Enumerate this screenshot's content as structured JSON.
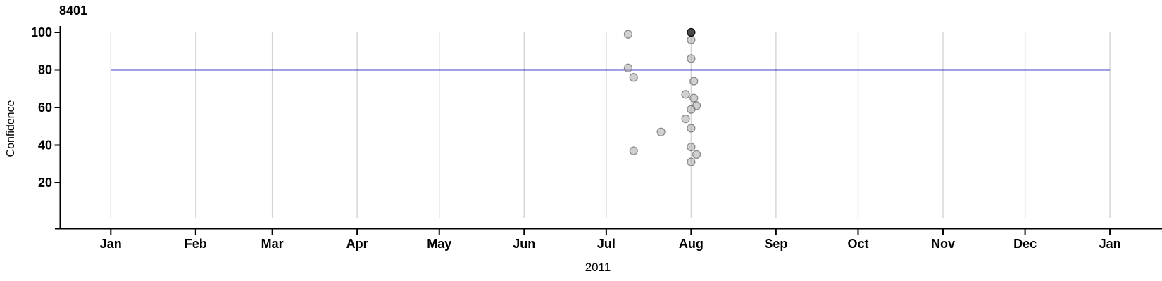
{
  "chart_data": {
    "type": "scatter",
    "title": "8401",
    "xlabel": "2011",
    "ylabel": "Confidence",
    "legend": "none",
    "grid": "vertical-month-lines",
    "x_axis": {
      "range": [
        "2011-01-01",
        "2012-01-01"
      ],
      "ticks": [
        {
          "label": "Jan",
          "date": "2011-01-01"
        },
        {
          "label": "Feb",
          "date": "2011-02-01"
        },
        {
          "label": "Mar",
          "date": "2011-03-01"
        },
        {
          "label": "Apr",
          "date": "2011-04-01"
        },
        {
          "label": "May",
          "date": "2011-05-01"
        },
        {
          "label": "Jun",
          "date": "2011-06-01"
        },
        {
          "label": "Jul",
          "date": "2011-07-01"
        },
        {
          "label": "Aug",
          "date": "2011-08-01"
        },
        {
          "label": "Sep",
          "date": "2011-09-01"
        },
        {
          "label": "Oct",
          "date": "2011-10-01"
        },
        {
          "label": "Nov",
          "date": "2011-11-01"
        },
        {
          "label": "Dec",
          "date": "2011-12-01"
        },
        {
          "label": "Jan",
          "date": "2012-01-01"
        }
      ]
    },
    "y_axis": {
      "label": "Confidence",
      "ticks": [
        20,
        40,
        60,
        80,
        100
      ],
      "range": [
        0,
        103
      ]
    },
    "reference_line": {
      "y": 80,
      "from": "2011-01-01",
      "to": "2012-01-01",
      "color": "#0000bb"
    },
    "points": [
      {
        "date": "2011-07-09",
        "confidence": 99,
        "shade": "light"
      },
      {
        "date": "2011-08-01",
        "confidence": 96,
        "shade": "light"
      },
      {
        "date": "2011-08-01",
        "confidence": 86,
        "shade": "light"
      },
      {
        "date": "2011-07-09",
        "confidence": 81,
        "shade": "light"
      },
      {
        "date": "2011-07-11",
        "confidence": 76,
        "shade": "light"
      },
      {
        "date": "2011-08-02",
        "confidence": 74,
        "shade": "light"
      },
      {
        "date": "2011-07-30",
        "confidence": 67,
        "shade": "light"
      },
      {
        "date": "2011-08-02",
        "confidence": 65,
        "shade": "light"
      },
      {
        "date": "2011-08-03",
        "confidence": 61,
        "shade": "light"
      },
      {
        "date": "2011-08-01",
        "confidence": 59,
        "shade": "light"
      },
      {
        "date": "2011-07-30",
        "confidence": 54,
        "shade": "light"
      },
      {
        "date": "2011-08-01",
        "confidence": 49,
        "shade": "light"
      },
      {
        "date": "2011-07-21",
        "confidence": 47,
        "shade": "light"
      },
      {
        "date": "2011-08-01",
        "confidence": 39,
        "shade": "light"
      },
      {
        "date": "2011-07-11",
        "confidence": 37,
        "shade": "light"
      },
      {
        "date": "2011-08-03",
        "confidence": 35,
        "shade": "light"
      },
      {
        "date": "2011-08-01",
        "confidence": 31,
        "shade": "light"
      },
      {
        "date": "2011-08-01",
        "confidence": 100,
        "shade": "dark"
      }
    ],
    "colors": {
      "light_fill": "rgba(170,170,170,0.55)",
      "light_stroke": "rgba(110,110,110,0.75)",
      "dark_fill": "rgba(35,35,35,0.82)",
      "dark_stroke": "rgba(0,0,0,0.9)",
      "grid": "#d4d4d4",
      "axis": "#000000",
      "reference": "#0000bb"
    }
  }
}
